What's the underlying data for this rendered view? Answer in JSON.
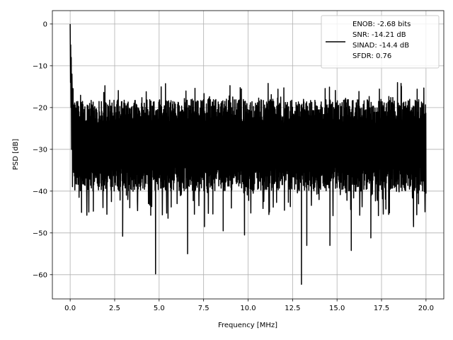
{
  "chart_data": {
    "type": "line",
    "title": "",
    "xlabel": "Frequency [MHz]",
    "ylabel": "PSD [dB]",
    "xlim": [
      -1.0,
      21.0
    ],
    "ylim": [
      -65.8,
      3.2
    ],
    "xticks": [
      0.0,
      2.5,
      5.0,
      7.5,
      10.0,
      12.5,
      15.0,
      17.5,
      20.0
    ],
    "xtick_labels": [
      "0.0",
      "2.5",
      "5.0",
      "7.5",
      "10.0",
      "12.5",
      "15.0",
      "17.5",
      "20.0"
    ],
    "yticks": [
      0,
      -10,
      -20,
      -30,
      -40,
      -50,
      -60
    ],
    "ytick_labels": [
      "0",
      "−10",
      "−20",
      "−30",
      "−40",
      "−50",
      "−60"
    ],
    "grid": true,
    "legend_position": "top-right",
    "legend_lines": [
      "ENOB: -2.68 bits",
      "SNR: -14.21 dB",
      "SINAD: -14.4 dB",
      "SFDR: 0.76"
    ],
    "series": [
      {
        "color": "#000000",
        "x_range": [
          0.0,
          20.0
        ],
        "peak": {
          "x": 0.0,
          "y": 0.0
        },
        "noise_floor_center": -28,
        "noise_floor_upper": -18,
        "noise_floor_lower": -38,
        "deep_dips": [
          {
            "x": 0.5,
            "y": -41.5
          },
          {
            "x": 0.8,
            "y": -38.5
          },
          {
            "x": 2.0,
            "y": -37.0
          },
          {
            "x": 2.95,
            "y": -50.8
          },
          {
            "x": 3.35,
            "y": -44.0
          },
          {
            "x": 4.4,
            "y": -43.0
          },
          {
            "x": 4.8,
            "y": -59.8
          },
          {
            "x": 5.5,
            "y": -46.5
          },
          {
            "x": 6.6,
            "y": -55.0
          },
          {
            "x": 7.55,
            "y": -48.5
          },
          {
            "x": 8.6,
            "y": -49.5
          },
          {
            "x": 9.8,
            "y": -50.5
          },
          {
            "x": 11.2,
            "y": -45.0
          },
          {
            "x": 13.0,
            "y": -62.3
          },
          {
            "x": 13.3,
            "y": -53.0
          },
          {
            "x": 14.6,
            "y": -53.0
          },
          {
            "x": 15.8,
            "y": -54.2
          },
          {
            "x": 16.9,
            "y": -51.2
          },
          {
            "x": 17.6,
            "y": -45.5
          },
          {
            "x": 19.3,
            "y": -48.5
          }
        ]
      }
    ]
  }
}
